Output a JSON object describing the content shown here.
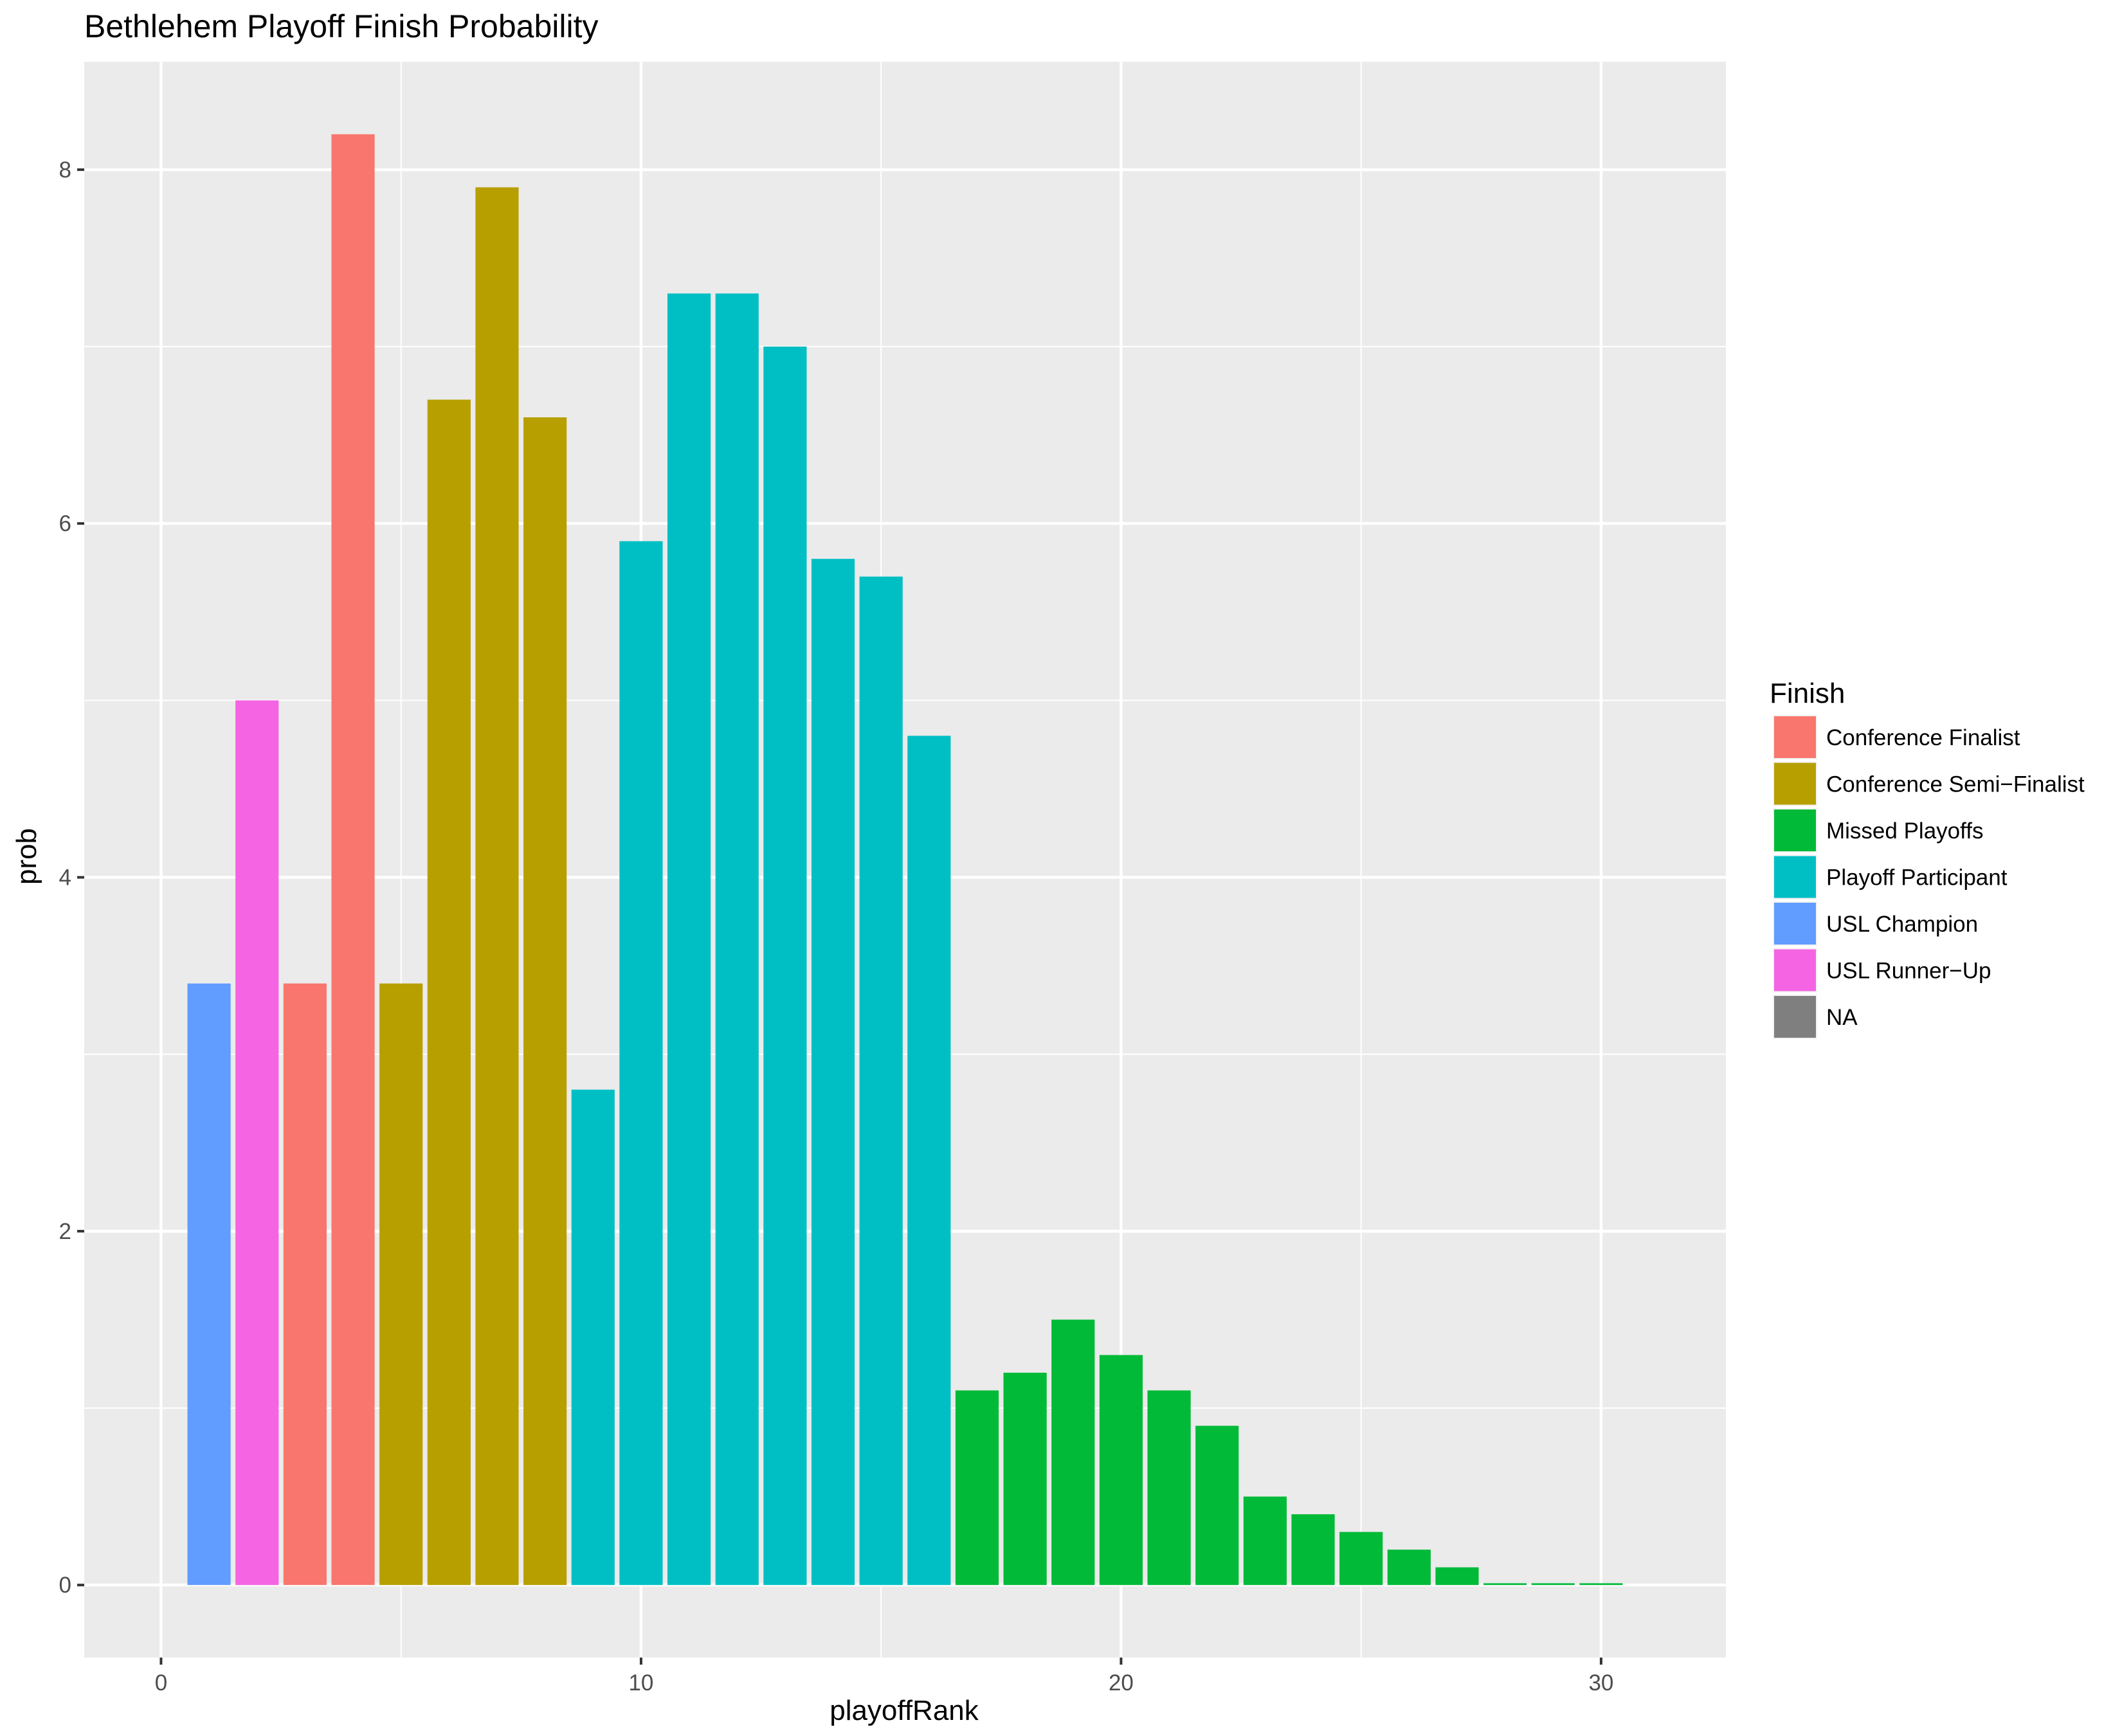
{
  "chart_data": {
    "type": "bar",
    "title": "Bethlehem Playoff Finish Probability",
    "xlabel": "playoffRank",
    "ylabel": "prob",
    "xlim": [
      -1.6,
      32.6
    ],
    "ylim": [
      -0.41,
      8.61
    ],
    "x_ticks": [
      0,
      10,
      20,
      30
    ],
    "y_ticks": [
      0,
      2,
      4,
      6,
      8
    ],
    "x_tick_labels": [
      "0",
      "10",
      "20",
      "30"
    ],
    "y_tick_labels": [
      "0",
      "2",
      "4",
      "6",
      "8"
    ],
    "grid": true,
    "legend": {
      "title": "Finish",
      "position": "right",
      "entries": [
        {
          "label": "Conference Finalist",
          "color": "#F8766D"
        },
        {
          "label": "Conference Semi−Finalist",
          "color": "#B79F00"
        },
        {
          "label": "Missed Playoffs",
          "color": "#00BA38"
        },
        {
          "label": "Playoff Participant",
          "color": "#00BFC4"
        },
        {
          "label": "USL Champion",
          "color": "#619CFF"
        },
        {
          "label": "USL Runner−Up",
          "color": "#F564E3"
        },
        {
          "label": "NA",
          "color": "#7F7F7F"
        }
      ]
    },
    "bars": [
      {
        "x": 1,
        "value": 3.4,
        "finish": "USL Champion"
      },
      {
        "x": 2,
        "value": 5.0,
        "finish": "USL Runner−Up"
      },
      {
        "x": 3,
        "value": 3.4,
        "finish": "Conference Finalist"
      },
      {
        "x": 4,
        "value": 8.2,
        "finish": "Conference Finalist"
      },
      {
        "x": 5,
        "value": 3.4,
        "finish": "Conference Semi−Finalist"
      },
      {
        "x": 6,
        "value": 6.7,
        "finish": "Conference Semi−Finalist"
      },
      {
        "x": 7,
        "value": 7.9,
        "finish": "Conference Semi−Finalist"
      },
      {
        "x": 8,
        "value": 6.6,
        "finish": "Conference Semi−Finalist"
      },
      {
        "x": 9,
        "value": 2.8,
        "finish": "Playoff Participant"
      },
      {
        "x": 10,
        "value": 5.9,
        "finish": "Playoff Participant"
      },
      {
        "x": 11,
        "value": 7.3,
        "finish": "Playoff Participant"
      },
      {
        "x": 12,
        "value": 7.3,
        "finish": "Playoff Participant"
      },
      {
        "x": 13,
        "value": 7.0,
        "finish": "Playoff Participant"
      },
      {
        "x": 14,
        "value": 5.8,
        "finish": "Playoff Participant"
      },
      {
        "x": 15,
        "value": 5.7,
        "finish": "Playoff Participant"
      },
      {
        "x": 16,
        "value": 4.8,
        "finish": "Playoff Participant"
      },
      {
        "x": 17,
        "value": 1.1,
        "finish": "Missed Playoffs"
      },
      {
        "x": 18,
        "value": 1.2,
        "finish": "Missed Playoffs"
      },
      {
        "x": 19,
        "value": 1.5,
        "finish": "Missed Playoffs"
      },
      {
        "x": 20,
        "value": 1.3,
        "finish": "Missed Playoffs"
      },
      {
        "x": 21,
        "value": 1.1,
        "finish": "Missed Playoffs"
      },
      {
        "x": 22,
        "value": 0.9,
        "finish": "Missed Playoffs"
      },
      {
        "x": 23,
        "value": 0.5,
        "finish": "Missed Playoffs"
      },
      {
        "x": 24,
        "value": 0.4,
        "finish": "Missed Playoffs"
      },
      {
        "x": 25,
        "value": 0.3,
        "finish": "Missed Playoffs"
      },
      {
        "x": 26,
        "value": 0.2,
        "finish": "Missed Playoffs"
      },
      {
        "x": 27,
        "value": 0.1,
        "finish": "Missed Playoffs"
      },
      {
        "x": 28,
        "value": 0.01,
        "finish": "Missed Playoffs"
      },
      {
        "x": 29,
        "value": 0.01,
        "finish": "Missed Playoffs"
      },
      {
        "x": 30,
        "value": 0.01,
        "finish": "Missed Playoffs"
      }
    ]
  }
}
